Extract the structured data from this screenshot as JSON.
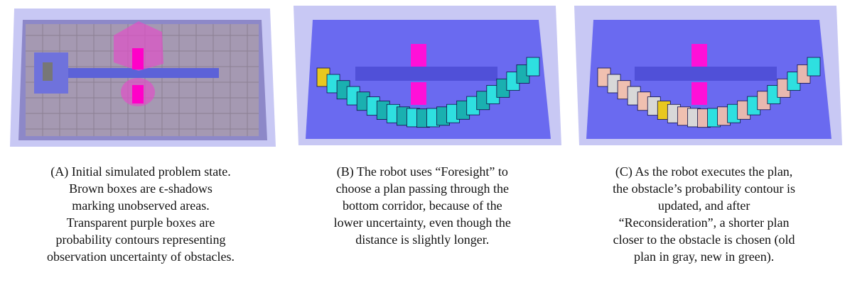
{
  "panels": [
    {
      "label": "(A)",
      "lines": [
        "Initial simulated problem state.",
        "Brown boxes are ϵ-shadows",
        "marking unobserved areas.",
        "Transparent purple boxes are",
        "probability contours representing",
        "observation uncertainty of obstacles."
      ]
    },
    {
      "label": "(B)",
      "lines": [
        "The robot uses “Foresight” to",
        "choose a plan passing through the",
        "bottom corridor, because of the",
        "lower uncertainty, even though the",
        "distance is slightly longer."
      ]
    },
    {
      "label": "(C)",
      "lines": [
        "As the robot executes the plan,",
        "the obstacle’s probability contour is",
        "updated, and after",
        "“Reconsideration”, a shorter plan",
        "closer to the obstacle is chosen (old",
        "plan in gray, new in green)."
      ]
    }
  ]
}
